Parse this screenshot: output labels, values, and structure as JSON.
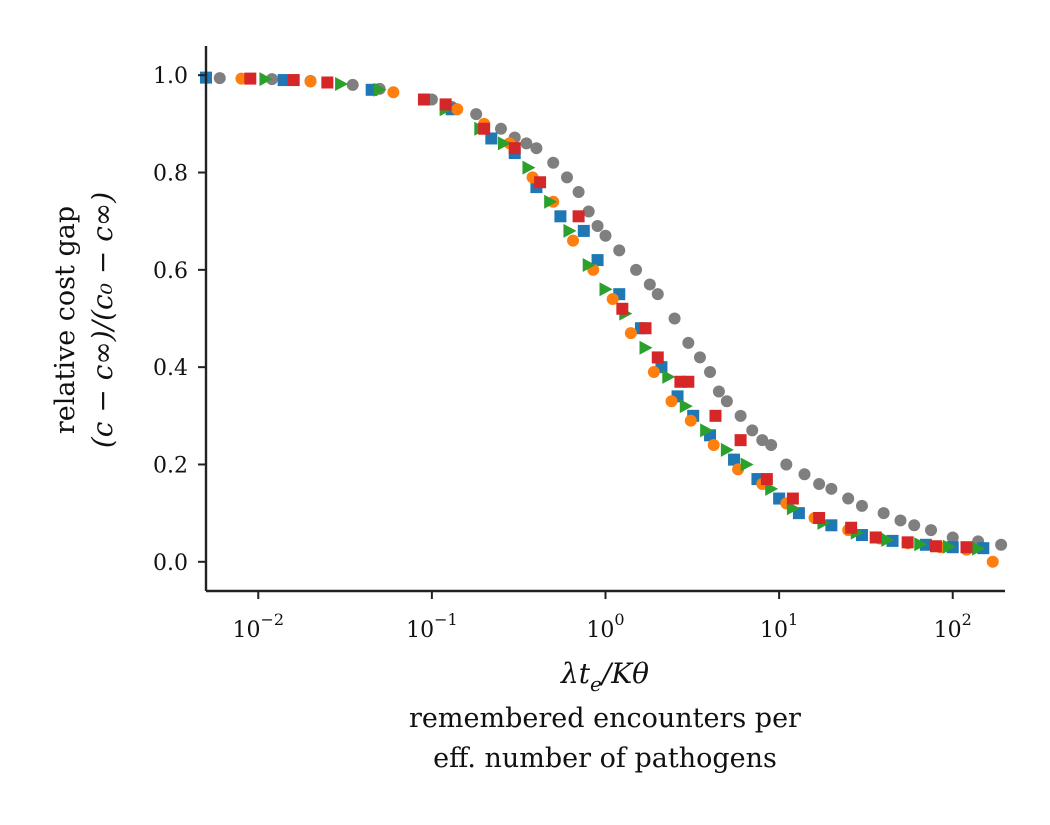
{
  "chart_data": {
    "type": "scatter",
    "title": "",
    "xlabel_math": "λt_e/Kθ",
    "xlabel_lines": [
      "remembered encounters per",
      "eff. number of pathogens"
    ],
    "ylabel_lines": [
      "relative cost gap",
      "(c − c∞)/(c₀ − c∞)"
    ],
    "xscale": "log",
    "xlim": [
      0.005,
      200
    ],
    "ylim": [
      -0.06,
      1.06
    ],
    "grid": false,
    "legend": "none",
    "x_ticks": [
      {
        "value": 0.01,
        "base": "10",
        "exp": "−2"
      },
      {
        "value": 0.1,
        "base": "10",
        "exp": "−1"
      },
      {
        "value": 1,
        "base": "10",
        "exp": "0"
      },
      {
        "value": 10,
        "base": "10",
        "exp": "1"
      },
      {
        "value": 100,
        "base": "10",
        "exp": "2"
      }
    ],
    "y_ticks": [
      {
        "value": 0.0,
        "label": "0.0"
      },
      {
        "value": 0.2,
        "label": "0.2"
      },
      {
        "value": 0.4,
        "label": "0.4"
      },
      {
        "value": 0.6,
        "label": "0.6"
      },
      {
        "value": 0.8,
        "label": "0.8"
      },
      {
        "value": 1.0,
        "label": "1.0"
      }
    ],
    "series": [
      {
        "color": "#7f7f7f",
        "marker": "circle",
        "points": [
          [
            0.006,
            0.994
          ],
          [
            0.012,
            0.992
          ],
          [
            0.02,
            0.988
          ],
          [
            0.035,
            0.98
          ],
          [
            0.05,
            0.972
          ],
          [
            0.1,
            0.95
          ],
          [
            0.13,
            0.935
          ],
          [
            0.18,
            0.92
          ],
          [
            0.25,
            0.89
          ],
          [
            0.3,
            0.872
          ],
          [
            0.35,
            0.86
          ],
          [
            0.4,
            0.85
          ],
          [
            0.5,
            0.82
          ],
          [
            0.6,
            0.79
          ],
          [
            0.7,
            0.76
          ],
          [
            0.8,
            0.72
          ],
          [
            0.9,
            0.69
          ],
          [
            1.0,
            0.67
          ],
          [
            1.2,
            0.64
          ],
          [
            1.5,
            0.6
          ],
          [
            1.8,
            0.57
          ],
          [
            2.0,
            0.55
          ],
          [
            2.5,
            0.5
          ],
          [
            3.0,
            0.45
          ],
          [
            3.5,
            0.42
          ],
          [
            4.0,
            0.39
          ],
          [
            4.5,
            0.35
          ],
          [
            5.0,
            0.33
          ],
          [
            6.0,
            0.3
          ],
          [
            7.0,
            0.27
          ],
          [
            8.0,
            0.25
          ],
          [
            9.0,
            0.24
          ],
          [
            11.0,
            0.2
          ],
          [
            14.0,
            0.18
          ],
          [
            17.0,
            0.16
          ],
          [
            20.0,
            0.15
          ],
          [
            25.0,
            0.13
          ],
          [
            30.0,
            0.115
          ],
          [
            40.0,
            0.1
          ],
          [
            50.0,
            0.085
          ],
          [
            60.0,
            0.075
          ],
          [
            75.0,
            0.065
          ],
          [
            100.0,
            0.05
          ],
          [
            140.0,
            0.042
          ],
          [
            190.0,
            0.035
          ]
        ]
      },
      {
        "color": "#1f77b4",
        "marker": "square",
        "points": [
          [
            0.005,
            0.995
          ],
          [
            0.014,
            0.99
          ],
          [
            0.045,
            0.97
          ],
          [
            0.13,
            0.93
          ],
          [
            0.22,
            0.87
          ],
          [
            0.3,
            0.84
          ],
          [
            0.4,
            0.77
          ],
          [
            0.55,
            0.71
          ],
          [
            0.75,
            0.68
          ],
          [
            0.9,
            0.62
          ],
          [
            1.2,
            0.55
          ],
          [
            1.6,
            0.48
          ],
          [
            2.1,
            0.4
          ],
          [
            2.6,
            0.34
          ],
          [
            3.2,
            0.3
          ],
          [
            4.0,
            0.26
          ],
          [
            5.5,
            0.21
          ],
          [
            7.5,
            0.17
          ],
          [
            10.0,
            0.13
          ],
          [
            13.0,
            0.1
          ],
          [
            20.0,
            0.075
          ],
          [
            30.0,
            0.055
          ],
          [
            45.0,
            0.043
          ],
          [
            70.0,
            0.035
          ],
          [
            100.0,
            0.03
          ],
          [
            150.0,
            0.028
          ]
        ]
      },
      {
        "color": "#ff7f0e",
        "marker": "circle",
        "points": [
          [
            0.008,
            0.993
          ],
          [
            0.02,
            0.987
          ],
          [
            0.06,
            0.965
          ],
          [
            0.14,
            0.93
          ],
          [
            0.2,
            0.9
          ],
          [
            0.28,
            0.86
          ],
          [
            0.38,
            0.79
          ],
          [
            0.5,
            0.74
          ],
          [
            0.65,
            0.66
          ],
          [
            0.85,
            0.6
          ],
          [
            1.1,
            0.54
          ],
          [
            1.4,
            0.47
          ],
          [
            1.9,
            0.39
          ],
          [
            2.4,
            0.33
          ],
          [
            3.1,
            0.29
          ],
          [
            4.2,
            0.24
          ],
          [
            5.8,
            0.19
          ],
          [
            8.0,
            0.16
          ],
          [
            11.0,
            0.12
          ],
          [
            16.0,
            0.09
          ],
          [
            25.0,
            0.065
          ],
          [
            38.0,
            0.048
          ],
          [
            55.0,
            0.038
          ],
          [
            85.0,
            0.03
          ],
          [
            120.0,
            0.025
          ],
          [
            170.0,
            0.0
          ]
        ]
      },
      {
        "color": "#2ca02c",
        "marker": "triangle",
        "points": [
          [
            0.011,
            0.992
          ],
          [
            0.03,
            0.982
          ],
          [
            0.05,
            0.97
          ],
          [
            0.12,
            0.93
          ],
          [
            0.19,
            0.89
          ],
          [
            0.26,
            0.86
          ],
          [
            0.36,
            0.81
          ],
          [
            0.48,
            0.74
          ],
          [
            0.62,
            0.68
          ],
          [
            0.8,
            0.61
          ],
          [
            1.0,
            0.56
          ],
          [
            1.3,
            0.51
          ],
          [
            1.7,
            0.44
          ],
          [
            2.3,
            0.38
          ],
          [
            2.9,
            0.32
          ],
          [
            3.8,
            0.27
          ],
          [
            5.0,
            0.23
          ],
          [
            6.5,
            0.2
          ],
          [
            9.0,
            0.15
          ],
          [
            12.0,
            0.11
          ],
          [
            18.0,
            0.08
          ],
          [
            28.0,
            0.06
          ],
          [
            42.0,
            0.045
          ],
          [
            65.0,
            0.036
          ],
          [
            95.0,
            0.031
          ],
          [
            140.0,
            0.027
          ]
        ]
      },
      {
        "color": "#d62728",
        "marker": "square",
        "points": [
          [
            0.009,
            0.993
          ],
          [
            0.016,
            0.99
          ],
          [
            0.025,
            0.985
          ],
          [
            0.09,
            0.95
          ],
          [
            0.12,
            0.94
          ],
          [
            0.2,
            0.89
          ],
          [
            0.3,
            0.85
          ],
          [
            0.42,
            0.78
          ],
          [
            0.7,
            0.71
          ],
          [
            1.25,
            0.52
          ],
          [
            1.7,
            0.48
          ],
          [
            2.0,
            0.42
          ],
          [
            2.7,
            0.37
          ],
          [
            3.0,
            0.37
          ],
          [
            4.3,
            0.3
          ],
          [
            6.0,
            0.25
          ],
          [
            8.5,
            0.17
          ],
          [
            12.0,
            0.13
          ],
          [
            17.0,
            0.09
          ],
          [
            26.0,
            0.07
          ],
          [
            36.0,
            0.05
          ],
          [
            55.0,
            0.04
          ],
          [
            80.0,
            0.032
          ],
          [
            120.0,
            0.03
          ]
        ]
      }
    ]
  }
}
